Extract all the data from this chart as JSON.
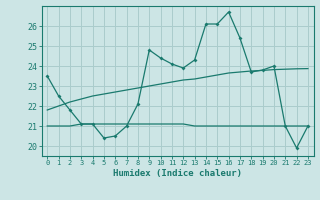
{
  "xlabel": "Humidex (Indice chaleur)",
  "x": [
    0,
    1,
    2,
    3,
    4,
    5,
    6,
    7,
    8,
    9,
    10,
    11,
    12,
    13,
    14,
    15,
    16,
    17,
    18,
    19,
    20,
    21,
    22,
    23
  ],
  "curve1": [
    23.5,
    22.5,
    21.8,
    21.1,
    21.1,
    20.4,
    20.5,
    21.0,
    22.1,
    24.8,
    24.4,
    24.1,
    23.9,
    24.3,
    26.1,
    26.1,
    26.7,
    25.4,
    23.7,
    23.8,
    24.0,
    21.0,
    19.9,
    21.0
  ],
  "curve2": [
    21.0,
    21.0,
    21.0,
    21.1,
    21.1,
    21.1,
    21.1,
    21.1,
    21.1,
    21.1,
    21.1,
    21.1,
    21.1,
    21.0,
    21.0,
    21.0,
    21.0,
    21.0,
    21.0,
    21.0,
    21.0,
    21.0,
    21.0,
    21.0
  ],
  "curve3": [
    21.8,
    22.0,
    22.2,
    22.35,
    22.5,
    22.6,
    22.7,
    22.8,
    22.9,
    23.0,
    23.1,
    23.2,
    23.3,
    23.35,
    23.45,
    23.55,
    23.65,
    23.7,
    23.75,
    23.78,
    23.82,
    23.84,
    23.86,
    23.87
  ],
  "color": "#1a7a6e",
  "bg_color": "#cce5e5",
  "grid_color": "#aacccc",
  "ylim": [
    19.5,
    27.0
  ],
  "yticks": [
    20,
    21,
    22,
    23,
    24,
    25,
    26
  ],
  "xlim": [
    -0.5,
    23.5
  ],
  "xticks": [
    0,
    1,
    2,
    3,
    4,
    5,
    6,
    7,
    8,
    9,
    10,
    11,
    12,
    13,
    14,
    15,
    16,
    17,
    18,
    19,
    20,
    21,
    22,
    23
  ]
}
